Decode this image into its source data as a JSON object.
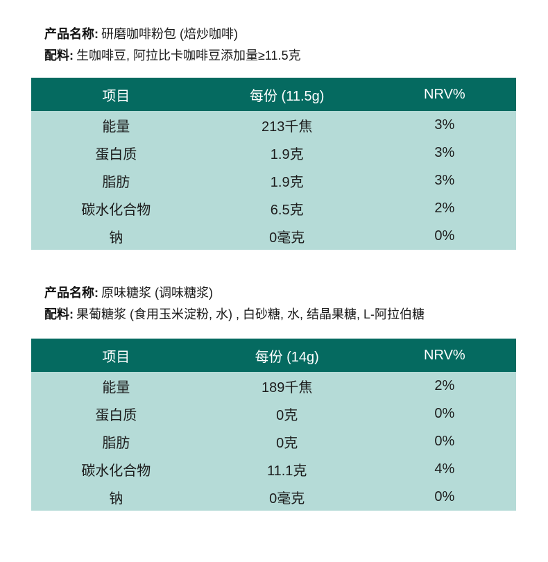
{
  "colors": {
    "header_bg": "#056a60",
    "body_bg": "#b5dbd7",
    "header_text": "#ffffff",
    "text": "#1a1a1a"
  },
  "products": [
    {
      "name_label": "产品名称:",
      "name_value": "研磨咖啡粉包 (焙炒咖啡)",
      "ingredients_label": "配料:",
      "ingredients_value": "生咖啡豆, 阿拉比卡咖啡豆添加量≥11.5克",
      "table": {
        "headers": [
          "项目",
          "每份 (11.5g)",
          "NRV%"
        ],
        "rows": [
          [
            "能量",
            "213千焦",
            "3%"
          ],
          [
            "蛋白质",
            "1.9克",
            "3%"
          ],
          [
            "脂肪",
            "1.9克",
            "3%"
          ],
          [
            "碳水化合物",
            "6.5克",
            "2%"
          ],
          [
            "钠",
            "0毫克",
            "0%"
          ]
        ]
      }
    },
    {
      "name_label": "产品名称:",
      "name_value": "原味糖浆 (调味糖浆)",
      "ingredients_label": "配料:",
      "ingredients_value": "果葡糖浆 (食用玉米淀粉, 水) , 白砂糖, 水, 结晶果糖, L-阿拉伯糖",
      "table": {
        "headers": [
          "项目",
          "每份 (14g)",
          "NRV%"
        ],
        "rows": [
          [
            "能量",
            "189千焦",
            "2%"
          ],
          [
            "蛋白质",
            "0克",
            "0%"
          ],
          [
            "脂肪",
            "0克",
            "0%"
          ],
          [
            "碳水化合物",
            "11.1克",
            "4%"
          ],
          [
            "钠",
            "0毫克",
            "0%"
          ]
        ]
      }
    }
  ]
}
